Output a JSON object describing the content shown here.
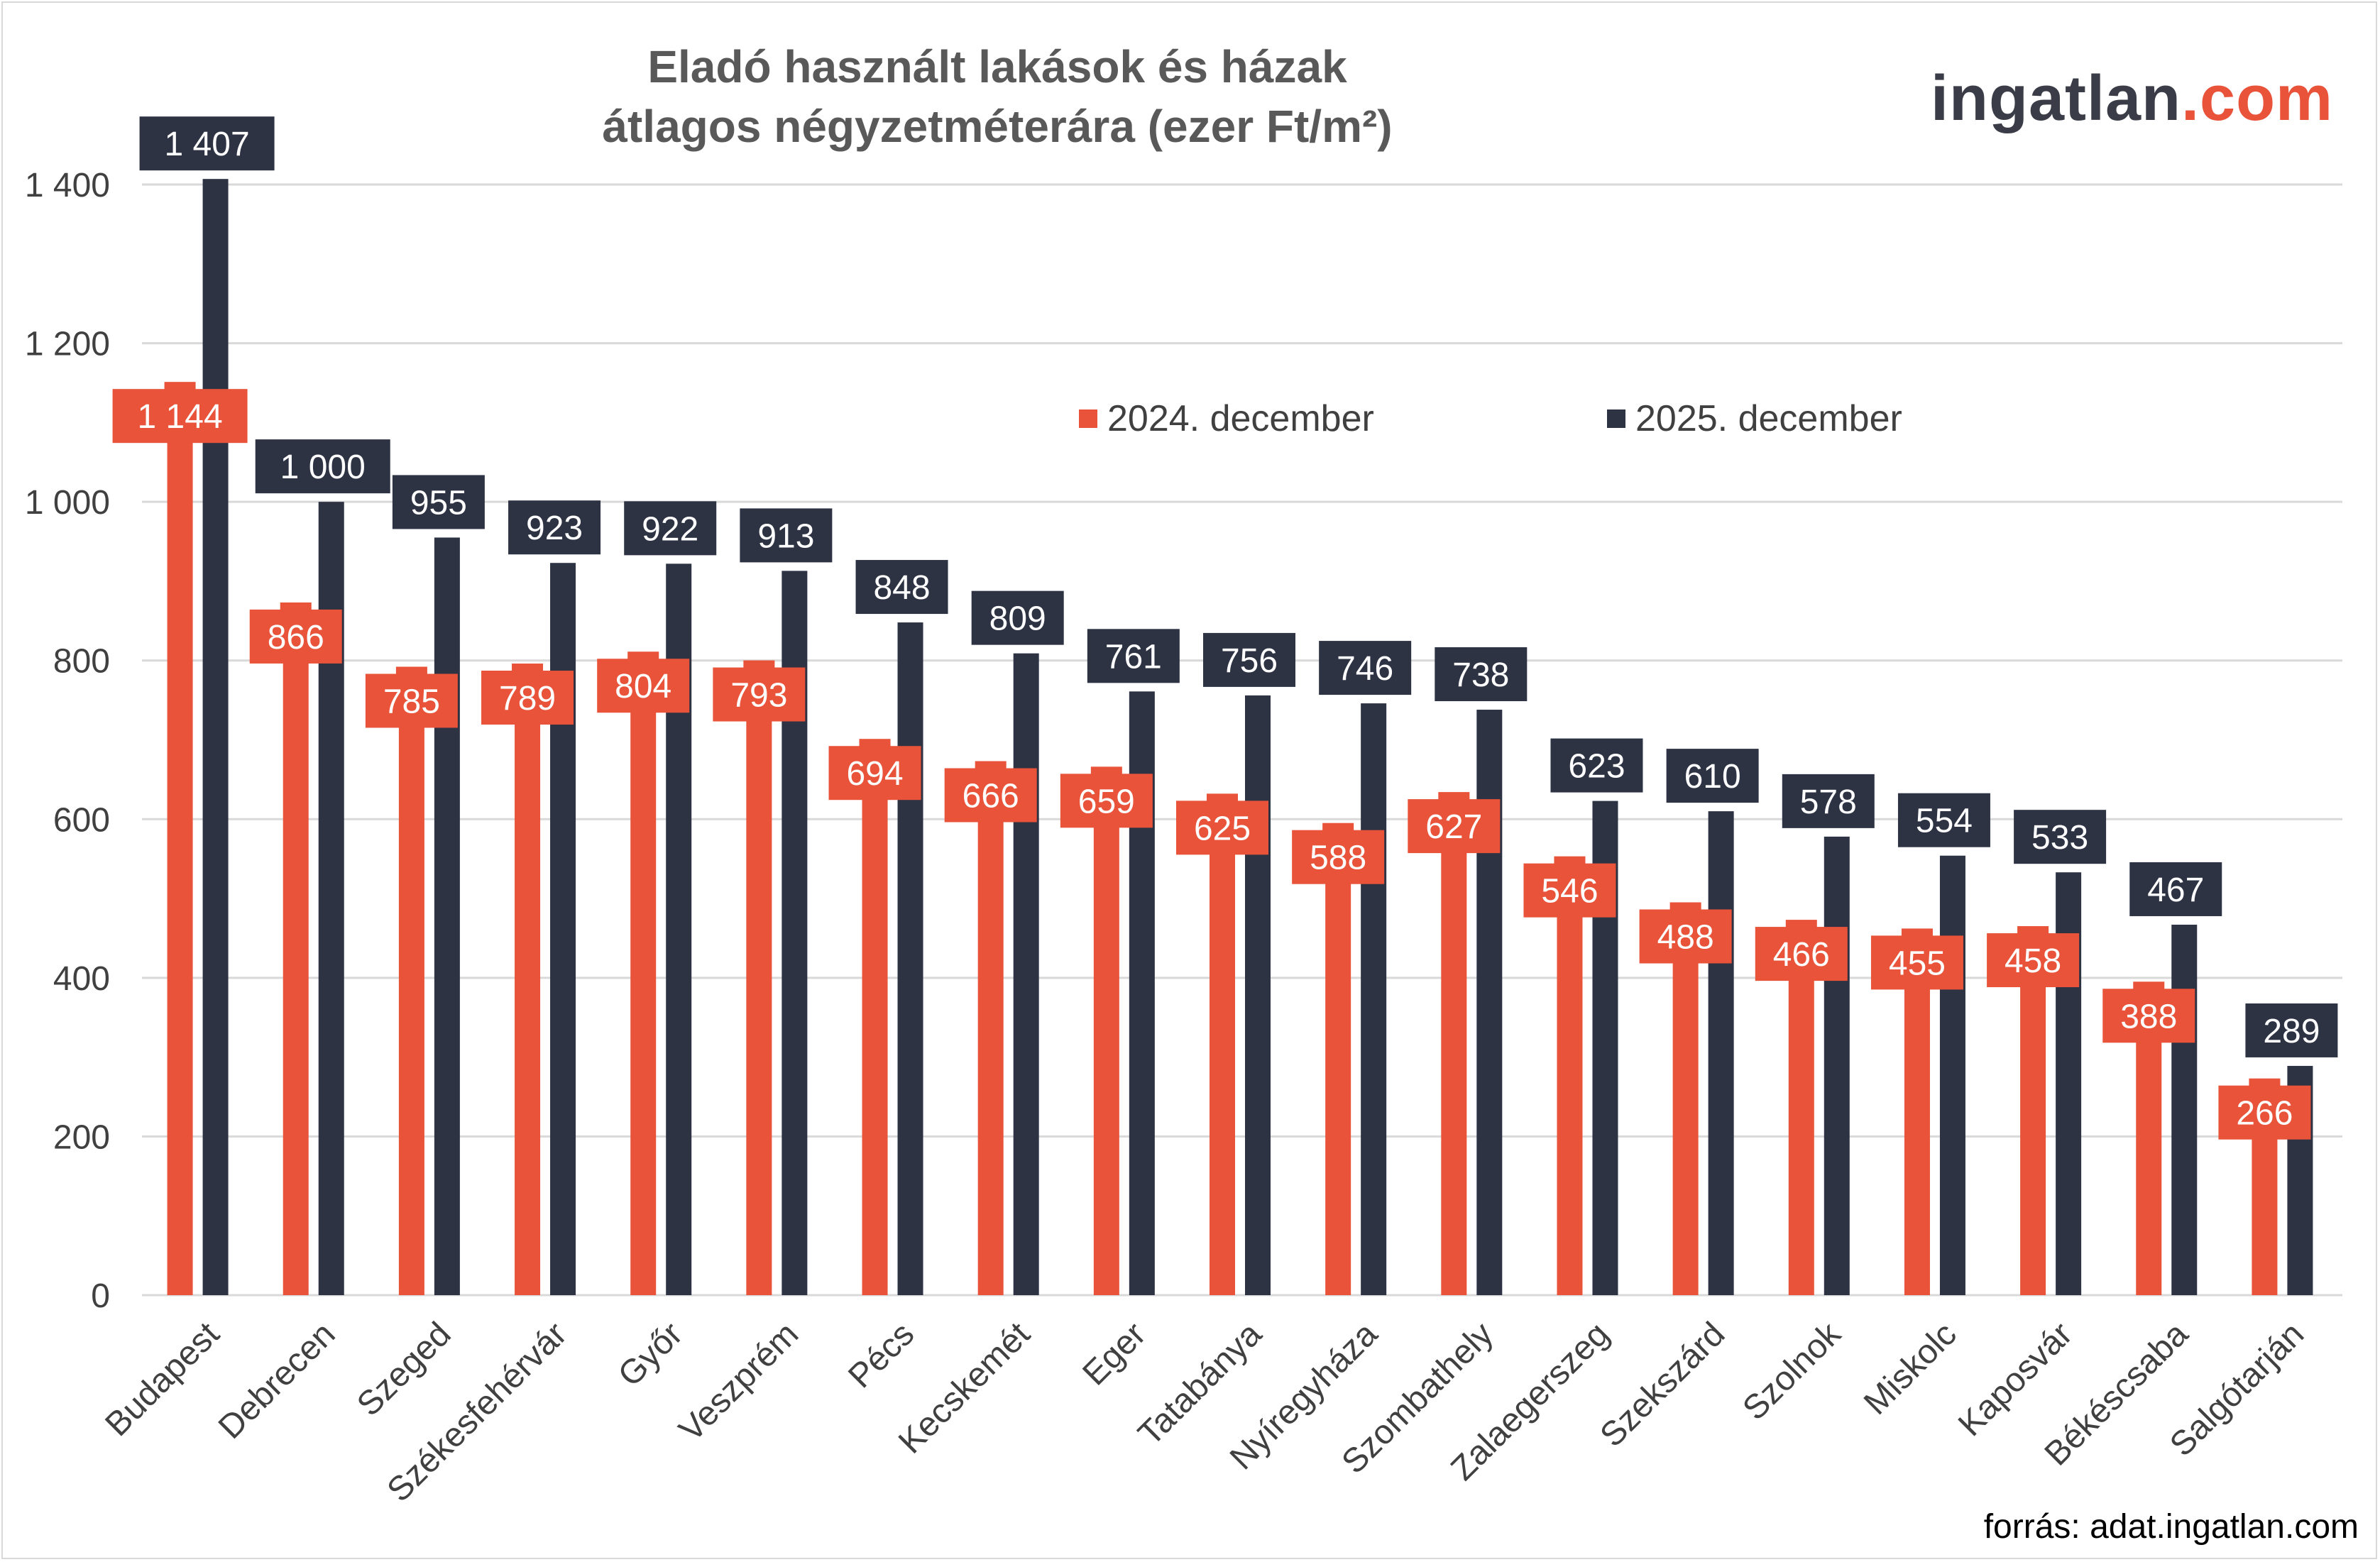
{
  "header": {
    "title_line1": "Eladó használt lakások és házak",
    "title_line2": "átlagos négyzetméterára (ezer Ft/m²)",
    "logo_main": "ingatlan",
    "logo_suffix": ".com"
  },
  "footer": {
    "source": "forrás: adat.ingatlan.com"
  },
  "colors": {
    "series_2024": "#e8533a",
    "series_2025": "#2e3344",
    "grid": "#d9d9d9",
    "axis_text": "#404040"
  },
  "chart_data": {
    "type": "bar",
    "title": "Eladó használt lakások és házak átlagos négyzetméterára (ezer Ft/m²)",
    "categories": [
      "Budapest",
      "Debrecen",
      "Szeged",
      "Székesfehérvár",
      "Győr",
      "Veszprém",
      "Pécs",
      "Kecskemét",
      "Eger",
      "Tatabánya",
      "Nyíregyháza",
      "Szombathely",
      "Zalaegerszeg",
      "Szekszárd",
      "Szolnok",
      "Miskolc",
      "Kaposvár",
      "Békéscsaba",
      "Salgótarján"
    ],
    "series": [
      {
        "name": "2024. december",
        "values": [
          1144,
          866,
          785,
          789,
          804,
          793,
          694,
          666,
          659,
          625,
          588,
          627,
          546,
          488,
          466,
          455,
          458,
          388,
          266
        ],
        "labels": [
          "1 144",
          "866",
          "785",
          "789",
          "804",
          "793",
          "694",
          "666",
          "659",
          "625",
          "588",
          "627",
          "546",
          "488",
          "466",
          "455",
          "458",
          "388",
          "266"
        ]
      },
      {
        "name": "2025. december",
        "values": [
          1407,
          1000,
          955,
          923,
          922,
          913,
          848,
          809,
          761,
          756,
          746,
          738,
          623,
          610,
          578,
          554,
          533,
          467,
          289
        ],
        "labels": [
          "1 407",
          "1 000",
          "955",
          "923",
          "922",
          "913",
          "848",
          "809",
          "761",
          "756",
          "746",
          "738",
          "623",
          "610",
          "578",
          "554",
          "533",
          "467",
          "289"
        ]
      }
    ],
    "yticks": [
      0,
      200,
      400,
      600,
      800,
      1000,
      1200,
      1400
    ],
    "ytick_labels": [
      "0",
      "200",
      "400",
      "600",
      "800",
      "1 000",
      "1 200",
      "1 400"
    ],
    "ylim": [
      0,
      1400
    ],
    "grid": true,
    "legend_position": "top-center"
  }
}
